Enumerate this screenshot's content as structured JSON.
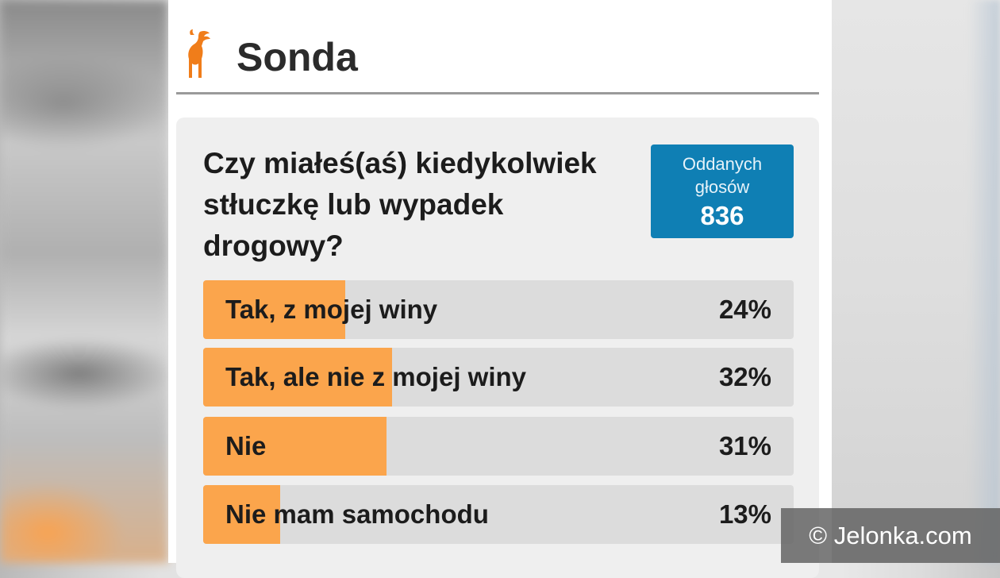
{
  "section": {
    "title": "Sonda",
    "logo_icon": "deer-logo-icon",
    "accent_color": "#f07d1a"
  },
  "poll": {
    "question": "Czy miałeś(aś) kiedykolwiek stłuczkę lub wypadek drogowy?",
    "votes_label": "Oddanych głosów",
    "votes_count": "836",
    "votes_badge_color": "#0f7fb4",
    "bar_fill_color": "#fba54c",
    "bar_track_color": "#dcdcdc",
    "options": [
      {
        "label": "Tak, z mojej winy",
        "percent_text": "24%",
        "percent": 24
      },
      {
        "label": "Tak, ale nie z mojej winy",
        "percent_text": "32%",
        "percent": 32
      },
      {
        "label": "Nie",
        "percent_text": "31%",
        "percent": 31
      },
      {
        "label": "Nie mam samochodu",
        "percent_text": "13%",
        "percent": 13
      }
    ]
  },
  "watermark": {
    "text": "© Jelonka.com"
  }
}
